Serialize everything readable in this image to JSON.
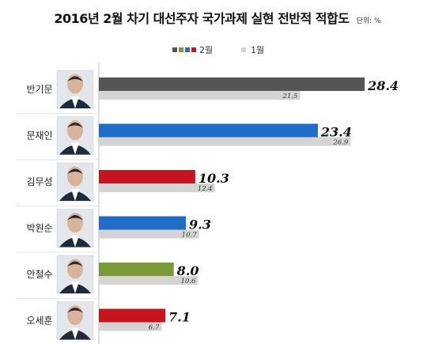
{
  "title": "2016년 2월 차기 대선주자 국가과제 실현 전반적 적합도",
  "unit": "단위: %",
  "legend": {
    "feb_label": "2월",
    "jan_label": "1월",
    "feb_swatches": [
      "#555555",
      "#7a9a3a",
      "#1e6ec8",
      "#c8141e"
    ],
    "jan_swatch": "#d4d4d4"
  },
  "chart_data": {
    "type": "bar",
    "orientation": "horizontal",
    "categories": [
      "반기문",
      "문재인",
      "김무성",
      "박원순",
      "안철수",
      "오세훈"
    ],
    "series": [
      {
        "name": "2월",
        "values": [
          28.4,
          23.4,
          10.3,
          9.3,
          8.0,
          7.1
        ],
        "value_labels": [
          "28.4",
          "23.4",
          "10.3",
          "9.3",
          "8.0",
          "7.1"
        ],
        "colors": [
          "#555555",
          "#1e6ec8",
          "#c8141e",
          "#1e6ec8",
          "#7a9a3a",
          "#c8141e"
        ]
      },
      {
        "name": "1월",
        "values": [
          21.5,
          26.9,
          12.4,
          10.7,
          10.6,
          6.7
        ],
        "value_labels": [
          "21.5",
          "26.9",
          "12.4",
          "10.7",
          "10.6",
          "6.7"
        ],
        "color": "#d4d4d4"
      }
    ],
    "xlim": [
      0,
      30
    ],
    "legend_position": "top-center",
    "grid": false
  }
}
